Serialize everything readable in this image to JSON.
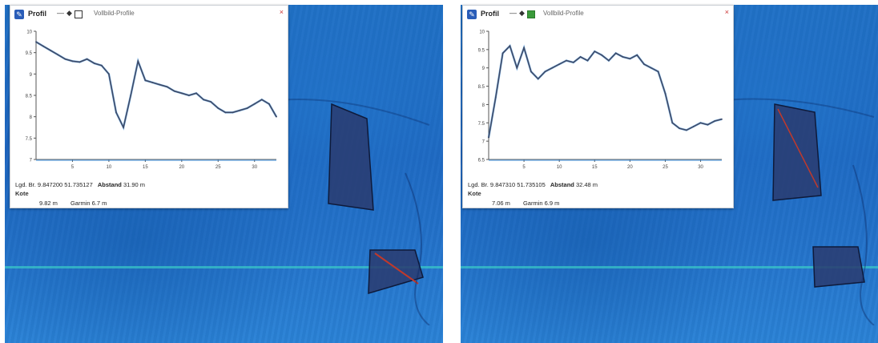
{
  "panels": [
    {
      "popup": {
        "title": "Profil",
        "tool_dash": "—",
        "tool_diamond": "◆",
        "mode_text": "Vollbild-Profile",
        "close_label": "×",
        "y_tick_labels": [
          "10",
          "9.5",
          "9",
          "8.5",
          "8",
          "7.5",
          "7"
        ],
        "x_tick_labels": [
          "5",
          "10",
          "15",
          "20",
          "25",
          "30"
        ],
        "info_line": "Lgd. Br. 9.847200  51.735127",
        "info_label": "Abstand",
        "info_value": "31.90 m",
        "row2_text": "Kote",
        "row3_left": "9.82 m",
        "row3_right": "Garmin 6.7 m"
      }
    },
    {
      "popup": {
        "title": "Profil",
        "tool_dash": "—",
        "tool_diamond": "◆",
        "mode_text": "Vollbild-Profile",
        "close_label": "×",
        "y_tick_labels": [
          "10",
          "9.5",
          "9",
          "8.5",
          "8",
          "7.5",
          "7",
          "6.5"
        ],
        "x_tick_labels": [
          "5",
          "10",
          "15",
          "20",
          "25",
          "30"
        ],
        "info_line": "Lgd. Br. 9.847310  51.735105",
        "info_label": "Abstand",
        "info_value": "32.48 m",
        "row2_text": "Kote",
        "row3_left": "7.06 m",
        "row3_right": "Garmin 6.9 m"
      }
    }
  ],
  "chart_data": [
    {
      "type": "line",
      "x": [
        0,
        1,
        2,
        3,
        4,
        5,
        6,
        7,
        8,
        9,
        10,
        11,
        12,
        13,
        14,
        15,
        16,
        17,
        18,
        19,
        20,
        21,
        22,
        23,
        24,
        25,
        26,
        27,
        28,
        29,
        30,
        31,
        32,
        33
      ],
      "series": [
        {
          "values": [
            9.75,
            9.65,
            9.55,
            9.45,
            9.35,
            9.3,
            9.28,
            9.35,
            9.25,
            9.2,
            9.0,
            8.1,
            7.75,
            8.5,
            9.3,
            8.85,
            8.8,
            8.75,
            8.7,
            8.6,
            8.55,
            8.5,
            8.55,
            8.4,
            8.35,
            8.2,
            8.1,
            8.1,
            8.15,
            8.2,
            8.3,
            8.4,
            8.3,
            8.0
          ]
        }
      ],
      "xlim": [
        0,
        33
      ],
      "ylim": [
        7,
        10
      ],
      "xlabel": "",
      "ylabel": "",
      "grid": false,
      "colors": {
        "line": "#3f4a66",
        "accent": "#2e8be0"
      }
    },
    {
      "type": "line",
      "x": [
        0,
        1,
        2,
        3,
        4,
        5,
        6,
        7,
        8,
        9,
        10,
        11,
        12,
        13,
        14,
        15,
        16,
        17,
        18,
        19,
        20,
        21,
        22,
        23,
        24,
        25,
        26,
        27,
        28,
        29,
        30,
        31,
        32,
        33
      ],
      "series": [
        {
          "values": [
            7.1,
            8.2,
            9.4,
            9.6,
            9.0,
            9.55,
            8.9,
            8.7,
            8.9,
            9.0,
            9.1,
            9.2,
            9.15,
            9.3,
            9.2,
            9.45,
            9.35,
            9.2,
            9.4,
            9.3,
            9.25,
            9.35,
            9.1,
            9.0,
            8.9,
            8.3,
            7.5,
            7.35,
            7.3,
            7.4,
            7.5,
            7.45,
            7.55,
            7.6
          ]
        }
      ],
      "xlim": [
        0,
        33
      ],
      "ylim": [
        6.5,
        10
      ],
      "xlabel": "",
      "ylabel": "",
      "grid": false,
      "colors": {
        "line": "#3f4a66",
        "accent": "#2e8be0"
      }
    }
  ],
  "theme": {
    "map_blue": "#1f6fc4",
    "seam": "#3cd2c8",
    "polygon_fill": "#2a3b6e",
    "polygon_edge": "#0e1a3a",
    "polygon_red": "#c0392b"
  }
}
